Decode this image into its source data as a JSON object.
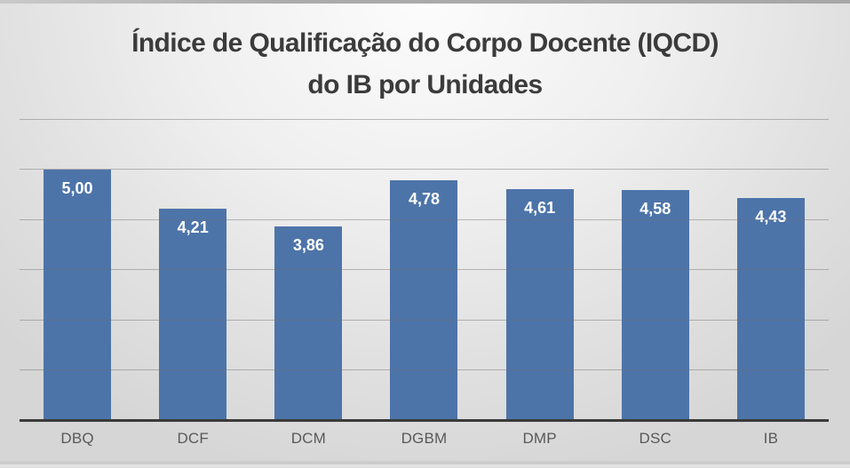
{
  "slide": {
    "top_edge_color": "#A9A9A9",
    "background_light": "#FAFAFA",
    "background_dark": "#D6D6D6"
  },
  "header": {
    "title_line1": "Índice de Qualificação do Corpo Docente (IQCD)",
    "title_line2": "do IB por Unidades",
    "title_color": "#3B3B3B"
  },
  "chart_data": {
    "type": "bar",
    "title": "Índice de Qualificação do Corpo Docente (IQCD) do IB por Unidades",
    "categories": [
      "DBQ",
      "DCF",
      "DCM",
      "DGBM",
      "DMP",
      "DSC",
      "IB"
    ],
    "values": [
      5.0,
      4.21,
      3.86,
      4.78,
      4.61,
      4.58,
      4.43
    ],
    "value_labels": [
      "5,00",
      "4,21",
      "3,86",
      "4,78",
      "4,61",
      "4,58",
      "4,43"
    ],
    "xlabel": "",
    "ylabel": "",
    "ylim": [
      0,
      6
    ],
    "gridline_step": 1,
    "grid": true,
    "gridlines_over_bars": true,
    "legend_position": "none",
    "bar_color": "#4D74A9",
    "bar_value_label_color": "#FFFFFF",
    "gridline_color": "rgba(110,110,110,0.45)",
    "axis_line_color": "#3A3A3A",
    "category_label_color": "#595959"
  }
}
